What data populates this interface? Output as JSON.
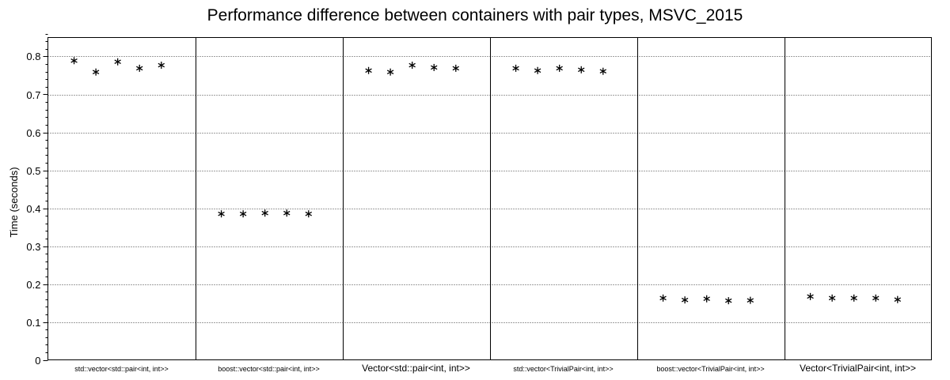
{
  "chart_data": {
    "type": "scatter",
    "title": "Performance difference between containers with pair types, MSVC_2015",
    "xlabel": "",
    "ylabel": "Time (seconds)",
    "ylim": [
      0,
      0.85
    ],
    "yticks": [
      "0",
      "0.1",
      "0.2",
      "0.3",
      "0.4",
      "0.5",
      "0.6",
      "0.7",
      "0.8"
    ],
    "grid": true,
    "marker": "asterisk",
    "categories": [
      "std::vector<std::pair<int, int>>",
      "boost::vector<std::pair<int, int>>",
      "Vector<std::pair<int, int>>",
      "std::vector<TrivialPair<int, int>>",
      "boost::vector<TrivialPair<int, int>>",
      "Vector<TrivialPair<int, int>>"
    ],
    "values": [
      [
        0.789,
        0.759,
        0.786,
        0.769,
        0.777
      ],
      [
        0.385,
        0.385,
        0.387,
        0.387,
        0.385
      ],
      [
        0.763,
        0.759,
        0.777,
        0.771,
        0.769
      ],
      [
        0.769,
        0.763,
        0.769,
        0.765,
        0.761
      ],
      [
        0.163,
        0.158,
        0.161,
        0.156,
        0.157
      ],
      [
        0.167,
        0.163,
        0.163,
        0.163,
        0.159
      ]
    ]
  }
}
